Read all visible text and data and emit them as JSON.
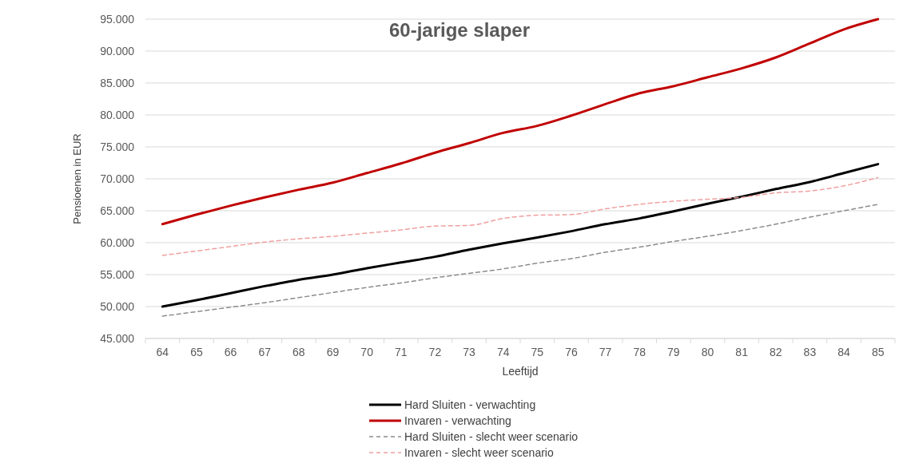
{
  "chart_data": {
    "type": "line",
    "title": "60-jarige slaper",
    "xlabel": "Leeftijd",
    "ylabel": "Pensioenen in EUR",
    "categories": [
      "64",
      "65",
      "66",
      "67",
      "68",
      "69",
      "70",
      "71",
      "72",
      "73",
      "74",
      "75",
      "76",
      "77",
      "78",
      "79",
      "80",
      "81",
      "82",
      "83",
      "84",
      "85"
    ],
    "series": [
      {
        "name": "Hard Sluiten - verwachting",
        "color": "#000000",
        "line_style": "solid",
        "values": [
          50000,
          51000,
          52100,
          53200,
          54200,
          55000,
          56000,
          56900,
          57800,
          58900,
          59900,
          60800,
          61800,
          62900,
          63800,
          64900,
          66100,
          67200,
          68400,
          69500,
          70900,
          72300
        ]
      },
      {
        "name": "Invaren - verwachting",
        "color": "#c00000",
        "line_style": "solid",
        "values": [
          62900,
          64400,
          65800,
          67100,
          68300,
          69400,
          70900,
          72400,
          74100,
          75600,
          77200,
          78300,
          79900,
          81700,
          83400,
          84500,
          85900,
          87300,
          89000,
          91200,
          93400,
          95000
        ]
      },
      {
        "name": "Hard Sluiten - slecht weer scenario",
        "color": "#8c8c8c",
        "line_style": "dashed",
        "values": [
          48500,
          49200,
          49900,
          50600,
          51400,
          52200,
          53000,
          53700,
          54500,
          55200,
          55900,
          56800,
          57500,
          58500,
          59300,
          60200,
          61000,
          61900,
          62900,
          64000,
          65000,
          66000
        ]
      },
      {
        "name": "Invaren - slecht weer scenario",
        "color": "#f0a0a0",
        "line_style": "dashed",
        "values": [
          58000,
          58700,
          59400,
          60100,
          60600,
          61000,
          61500,
          62000,
          62600,
          62700,
          63800,
          64300,
          64400,
          65300,
          66000,
          66500,
          66800,
          67100,
          67800,
          68100,
          68900,
          70200
        ]
      }
    ],
    "ylim": [
      45000,
      95000
    ],
    "yticks": [
      {
        "value": 45000,
        "label": "45.000"
      },
      {
        "value": 50000,
        "label": "50.000"
      },
      {
        "value": 55000,
        "label": "55.000"
      },
      {
        "value": 60000,
        "label": "60.000"
      },
      {
        "value": 65000,
        "label": "65.000"
      },
      {
        "value": 70000,
        "label": "70.000"
      },
      {
        "value": 75000,
        "label": "75.000"
      },
      {
        "value": 80000,
        "label": "80.000"
      },
      {
        "value": 85000,
        "label": "85.000"
      },
      {
        "value": 90000,
        "label": "90.000"
      },
      {
        "value": 95000,
        "label": "95.000"
      }
    ],
    "grid": "y",
    "legend": "bottom",
    "marker": "none"
  }
}
